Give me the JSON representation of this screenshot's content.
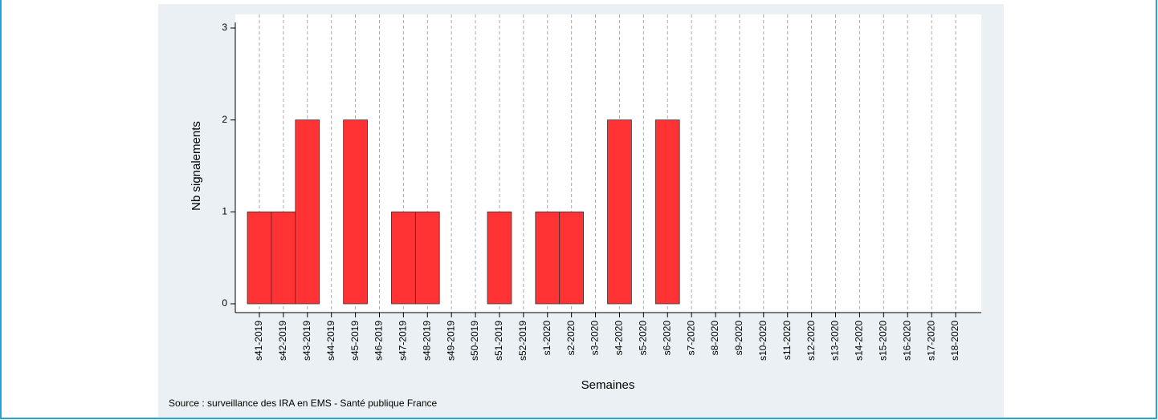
{
  "chart_data": {
    "type": "bar",
    "x_label": "Semaines",
    "y_label": "Nb signalements",
    "source": "Source : surveillance des IRA en EMS - Santé publique France",
    "categories": [
      "s41-2019",
      "s42-2019",
      "s43-2019",
      "s44-2019",
      "s45-2019",
      "s46-2019",
      "s47-2019",
      "s48-2019",
      "s49-2019",
      "s50-2019",
      "s51-2019",
      "s52-2019",
      "s1-2020",
      "s2-2020",
      "s3-2020",
      "s4-2020",
      "s5-2020",
      "s6-2020",
      "s7-2020",
      "s8-2020",
      "s9-2020",
      "s10-2020",
      "s11-2020",
      "s12-2020",
      "s13-2020",
      "s14-2020",
      "s15-2020",
      "s16-2020",
      "s17-2020",
      "s18-2020"
    ],
    "values": [
      1,
      1,
      2,
      0,
      2,
      0,
      1,
      1,
      0,
      0,
      1,
      0,
      1,
      1,
      0,
      2,
      0,
      2,
      0,
      0,
      0,
      0,
      0,
      0,
      0,
      0,
      0,
      0,
      0,
      0
    ],
    "color": "#ff3333",
    "ylim": [
      0,
      3
    ],
    "yticks": [
      0,
      1,
      2,
      3
    ],
    "grid": true
  }
}
